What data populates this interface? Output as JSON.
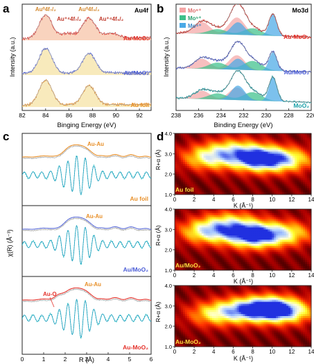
{
  "figure": {
    "panel_letters": [
      "a",
      "b",
      "c",
      "d"
    ]
  },
  "chart_data": [
    {
      "panel": "a",
      "type": "line",
      "tag": "Au4f",
      "xlabel": "Binging Energy (eV)",
      "ylabel": "Intensity (a.u.)",
      "xlim": [
        82,
        93
      ],
      "x_reversed": false,
      "xticks": [
        "82",
        "84",
        "86",
        "88",
        "90",
        "92"
      ],
      "peak_labels": [
        {
          "text": "Au⁰4f₇/₂",
          "x": 84.0,
          "color": "#d4882e"
        },
        {
          "text": "Au⁺⁴4f₇/₂",
          "x": 86.0,
          "color": "#c0392b"
        },
        {
          "text": "Au⁰4f₅/₂",
          "x": 87.7,
          "color": "#d4882e"
        },
        {
          "text": "Au⁺⁴4f₅/₂",
          "x": 89.6,
          "color": "#c0392b"
        }
      ],
      "series": [
        {
          "name": "Au-MoO₂",
          "color": "#e4322b",
          "peaks": [
            [
              84.0,
              1.0,
              0.55
            ],
            [
              87.7,
              0.85,
              0.55
            ],
            [
              85.9,
              0.22,
              0.6
            ],
            [
              89.6,
              0.22,
              0.6
            ]
          ]
        },
        {
          "name": "Au/MoO₂",
          "color": "#4a5cd6",
          "peaks": [
            [
              84.0,
              1.0,
              0.55
            ],
            [
              87.7,
              0.78,
              0.55
            ]
          ]
        },
        {
          "name": "Au foil",
          "color": "#e8902a",
          "peaks": [
            [
              84.0,
              0.95,
              0.55
            ],
            [
              87.7,
              0.72,
              0.55
            ]
          ]
        }
      ]
    },
    {
      "panel": "b",
      "type": "line",
      "tag": "Mo3d",
      "xlabel": "Binding Energy (eV)",
      "ylabel": "Intensity (a.u.)",
      "xlim": [
        238,
        226
      ],
      "x_reversed": true,
      "xticks": [
        "238",
        "236",
        "234",
        "232",
        "230",
        "228",
        "226"
      ],
      "legend": [
        {
          "label": "Mo⁶⁺",
          "color": "#f4a6a6"
        },
        {
          "label": "Mo⁵⁺",
          "color": "#3cc08a"
        },
        {
          "label": "Mo⁴⁺",
          "color": "#4aa9e6"
        }
      ],
      "series": [
        {
          "name": "Au-MoO₂",
          "color": "#e4322b",
          "components": {
            "Mo6+": [
              [
                232.6,
                0.62,
                0.7
              ],
              [
                235.7,
                0.42,
                0.7
              ]
            ],
            "Mo5+": [
              [
                231.2,
                0.25,
                0.8
              ],
              [
                234.3,
                0.18,
                0.8
              ]
            ],
            "Mo4+": [
              [
                229.4,
                0.78,
                0.35
              ],
              [
                232.5,
                0.45,
                0.6
              ]
            ]
          }
        },
        {
          "name": "Au/MoO₂",
          "color": "#4a5cd6",
          "components": {
            "Mo6+": [
              [
                232.6,
                0.55,
                0.7
              ],
              [
                235.7,
                0.38,
                0.7
              ]
            ],
            "Mo5+": [
              [
                231.2,
                0.35,
                0.8
              ],
              [
                234.3,
                0.25,
                0.8
              ]
            ],
            "Mo4+": [
              [
                229.4,
                0.7,
                0.35
              ],
              [
                232.5,
                0.42,
                0.6
              ]
            ]
          }
        },
        {
          "name": "MoO₂",
          "color": "#1aa0a8",
          "components": {
            "Mo6+": [
              [
                232.6,
                0.45,
                0.7
              ],
              [
                235.7,
                0.3,
                0.7
              ]
            ],
            "Mo5+": [
              [
                231.2,
                0.3,
                0.8
              ],
              [
                234.3,
                0.22,
                0.8
              ]
            ],
            "Mo4+": [
              [
                229.4,
                0.85,
                0.35
              ],
              [
                232.5,
                0.52,
                0.6
              ]
            ]
          }
        }
      ]
    },
    {
      "panel": "c",
      "type": "line",
      "xlabel": "R (Å)",
      "ylabel": "χ(R) (Å⁻³)",
      "xlim": [
        0,
        6
      ],
      "xticks": [
        "0",
        "1",
        "2",
        "3",
        "4",
        "5",
        "6"
      ],
      "subplots": [
        {
          "name": "Au foil",
          "annotations": [
            {
              "text": "Au-Au",
              "color": "#e8902a"
            }
          ],
          "series": [
            {
              "role": "magnitude",
              "color": "#e8902a"
            },
            {
              "role": "real part",
              "color": "#2ec4c4"
            }
          ]
        },
        {
          "name": "Au/MoO₂",
          "annotations": [
            {
              "text": "Au-Au",
              "color": "#e8902a"
            }
          ],
          "series": [
            {
              "role": "magnitude",
              "color": "#5a6bd8"
            },
            {
              "role": "real part",
              "color": "#2ec4c4"
            }
          ]
        },
        {
          "name": "Au-MoO₂",
          "annotations": [
            {
              "text": "Au-O",
              "color": "#e4322b"
            },
            {
              "text": "Au-Au",
              "color": "#e8902a"
            }
          ],
          "series": [
            {
              "role": "magnitude",
              "color": "#e4322b"
            },
            {
              "role": "real part",
              "color": "#2ec4c4"
            }
          ]
        }
      ]
    },
    {
      "panel": "d",
      "type": "heatmap",
      "xlabel": "K (Å⁻¹)",
      "ylabel": "R+α (Å)",
      "xlim": [
        0,
        14
      ],
      "ylim": [
        1.0,
        4.0
      ],
      "xticks": [
        "0",
        "2",
        "4",
        "6",
        "8",
        "10",
        "12",
        "14"
      ],
      "yticks": [
        "1.0",
        "2.0",
        "3.0",
        "4.0"
      ],
      "colormap": [
        "#3a0000",
        "#b00000",
        "#ff3000",
        "#ff9a00",
        "#ffff30",
        "#ffffe0",
        "#a8c8ff",
        "#2030e0"
      ],
      "maps": [
        {
          "name": "Au foil",
          "peaks": [
            [
              8.6,
              2.75,
              0.95
            ],
            [
              3.5,
              2.8,
              0.55
            ],
            [
              11.6,
              2.7,
              0.5
            ],
            [
              6.0,
              3.2,
              0.4
            ]
          ]
        },
        {
          "name": "Au/MoO₂",
          "peaks": [
            [
              8.0,
              2.7,
              0.95
            ],
            [
              3.3,
              2.9,
              0.6
            ],
            [
              11.4,
              2.8,
              0.5
            ],
            [
              5.8,
              3.3,
              0.45
            ]
          ]
        },
        {
          "name": "Au-MoO₂",
          "peaks": [
            [
              9.8,
              2.85,
              0.95
            ],
            [
              4.0,
              2.6,
              0.45
            ],
            [
              7.0,
              2.8,
              0.55
            ],
            [
              12.0,
              2.7,
              0.4
            ]
          ]
        }
      ]
    }
  ]
}
